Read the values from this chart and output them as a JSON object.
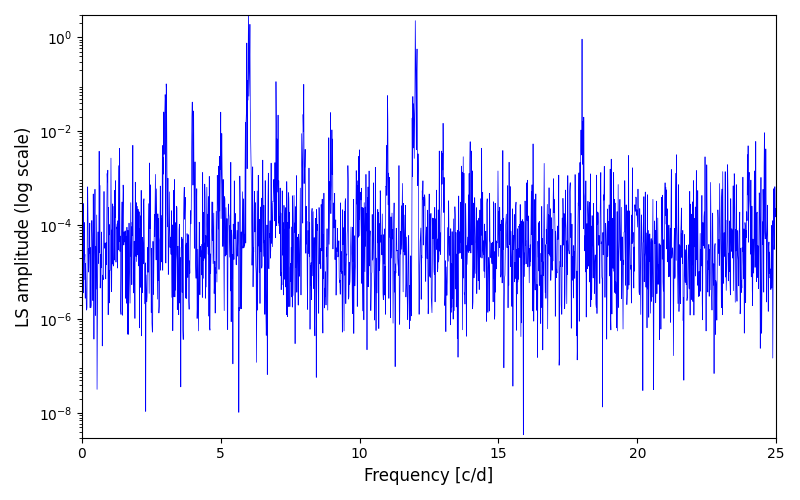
{
  "title": "",
  "xlabel": "Frequency [c/d]",
  "ylabel": "LS amplitude (log scale)",
  "line_color": "#0000FF",
  "line_width": 0.5,
  "xlim": [
    0,
    25
  ],
  "ylim": [
    3e-09,
    3
  ],
  "yscale": "log",
  "figsize": [
    8.0,
    5.0
  ],
  "dpi": 100,
  "background_color": "#ffffff",
  "freq_min": 0.0,
  "freq_max": 25.0,
  "n_points": 2000,
  "seed": 7,
  "yticks": [
    1e-08,
    1e-06,
    0.0001,
    0.01,
    1.0
  ]
}
